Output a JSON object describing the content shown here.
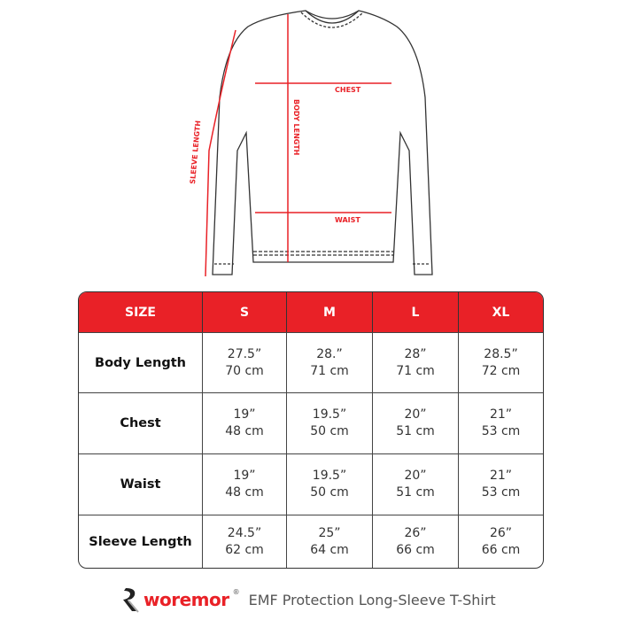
{
  "diagram": {
    "labels": {
      "chest": "CHEST",
      "body_length": "BODY LENGTH",
      "waist": "WAIST",
      "sleeve_length": "SLEEVE LENGTH"
    },
    "accent_color": "#e92127"
  },
  "table": {
    "header": [
      "SIZE",
      "S",
      "M",
      "L",
      "XL"
    ],
    "rows": [
      {
        "label": "Body Length",
        "values": [
          [
            "27.5”",
            "70 cm"
          ],
          [
            "28.”",
            "71 cm"
          ],
          [
            "28”",
            "71 cm"
          ],
          [
            "28.5”",
            "72 cm"
          ]
        ]
      },
      {
        "label": "Chest",
        "values": [
          [
            "19”",
            "48 cm"
          ],
          [
            "19.5”",
            "50 cm"
          ],
          [
            "20”",
            "51 cm"
          ],
          [
            "21”",
            "53 cm"
          ]
        ]
      },
      {
        "label": "Waist",
        "values": [
          [
            "19”",
            "48 cm"
          ],
          [
            "19.5”",
            "50 cm"
          ],
          [
            "20”",
            "51 cm"
          ],
          [
            "21”",
            "53 cm"
          ]
        ]
      },
      {
        "label": "Sleeve Length",
        "values": [
          [
            "24.5”",
            "62 cm"
          ],
          [
            "25”",
            "64 cm"
          ],
          [
            "26”",
            "66 cm"
          ],
          [
            "26”",
            "66 cm"
          ]
        ]
      }
    ]
  },
  "footer": {
    "brand": "woremor",
    "registered": "®",
    "product": "EMF Protection Long-Sleeve T-Shirt"
  }
}
